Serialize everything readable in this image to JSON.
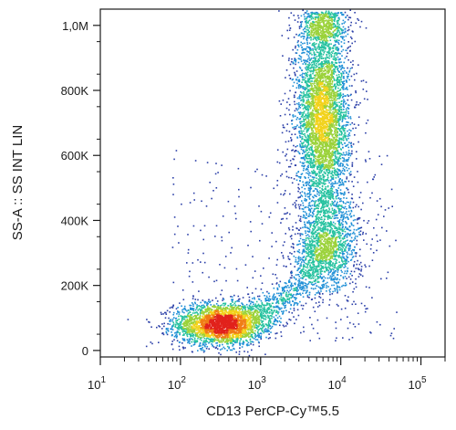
{
  "chart_data": {
    "type": "scatter",
    "title": "",
    "xlabel": "CD13 PerCP-Cy™5.5",
    "ylabel": "SS-A :: SS INT LIN",
    "x_scale": "log",
    "y_scale": "linear",
    "xlim": [
      10,
      200000
    ],
    "ylim": [
      -20000,
      1050000
    ],
    "x_ticks": [
      {
        "value": 10,
        "base": "10",
        "exp": "1"
      },
      {
        "value": 100,
        "base": "10",
        "exp": "2"
      },
      {
        "value": 1000,
        "base": "10",
        "exp": "3"
      },
      {
        "value": 10000,
        "base": "10",
        "exp": "4"
      },
      {
        "value": 100000,
        "base": "10",
        "exp": "5"
      }
    ],
    "y_ticks": [
      {
        "value": 0,
        "label": "0"
      },
      {
        "value": 200000,
        "label": "200K"
      },
      {
        "value": 400000,
        "label": "400K"
      },
      {
        "value": 600000,
        "label": "600K"
      },
      {
        "value": 800000,
        "label": "800K"
      },
      {
        "value": 1000000,
        "label": "1,0M"
      }
    ],
    "grid": false,
    "legend": "none",
    "density_colors": [
      "#2b3fa8",
      "#1f8fd6",
      "#27c2a0",
      "#9bd23a",
      "#f2d21b",
      "#f07d16",
      "#e1221c"
    ],
    "populations": [
      {
        "x_center": 300,
        "y_center": 80000,
        "x_spread_log": 0.28,
        "y_spread": 32000
      },
      {
        "x_center": 6000,
        "y_center": 720000,
        "x_spread_log": 0.17,
        "y_spread": 150000
      },
      {
        "x_center": 7000,
        "y_center": 330000,
        "x_spread_log": 0.2,
        "y_spread": 80000
      }
    ]
  }
}
